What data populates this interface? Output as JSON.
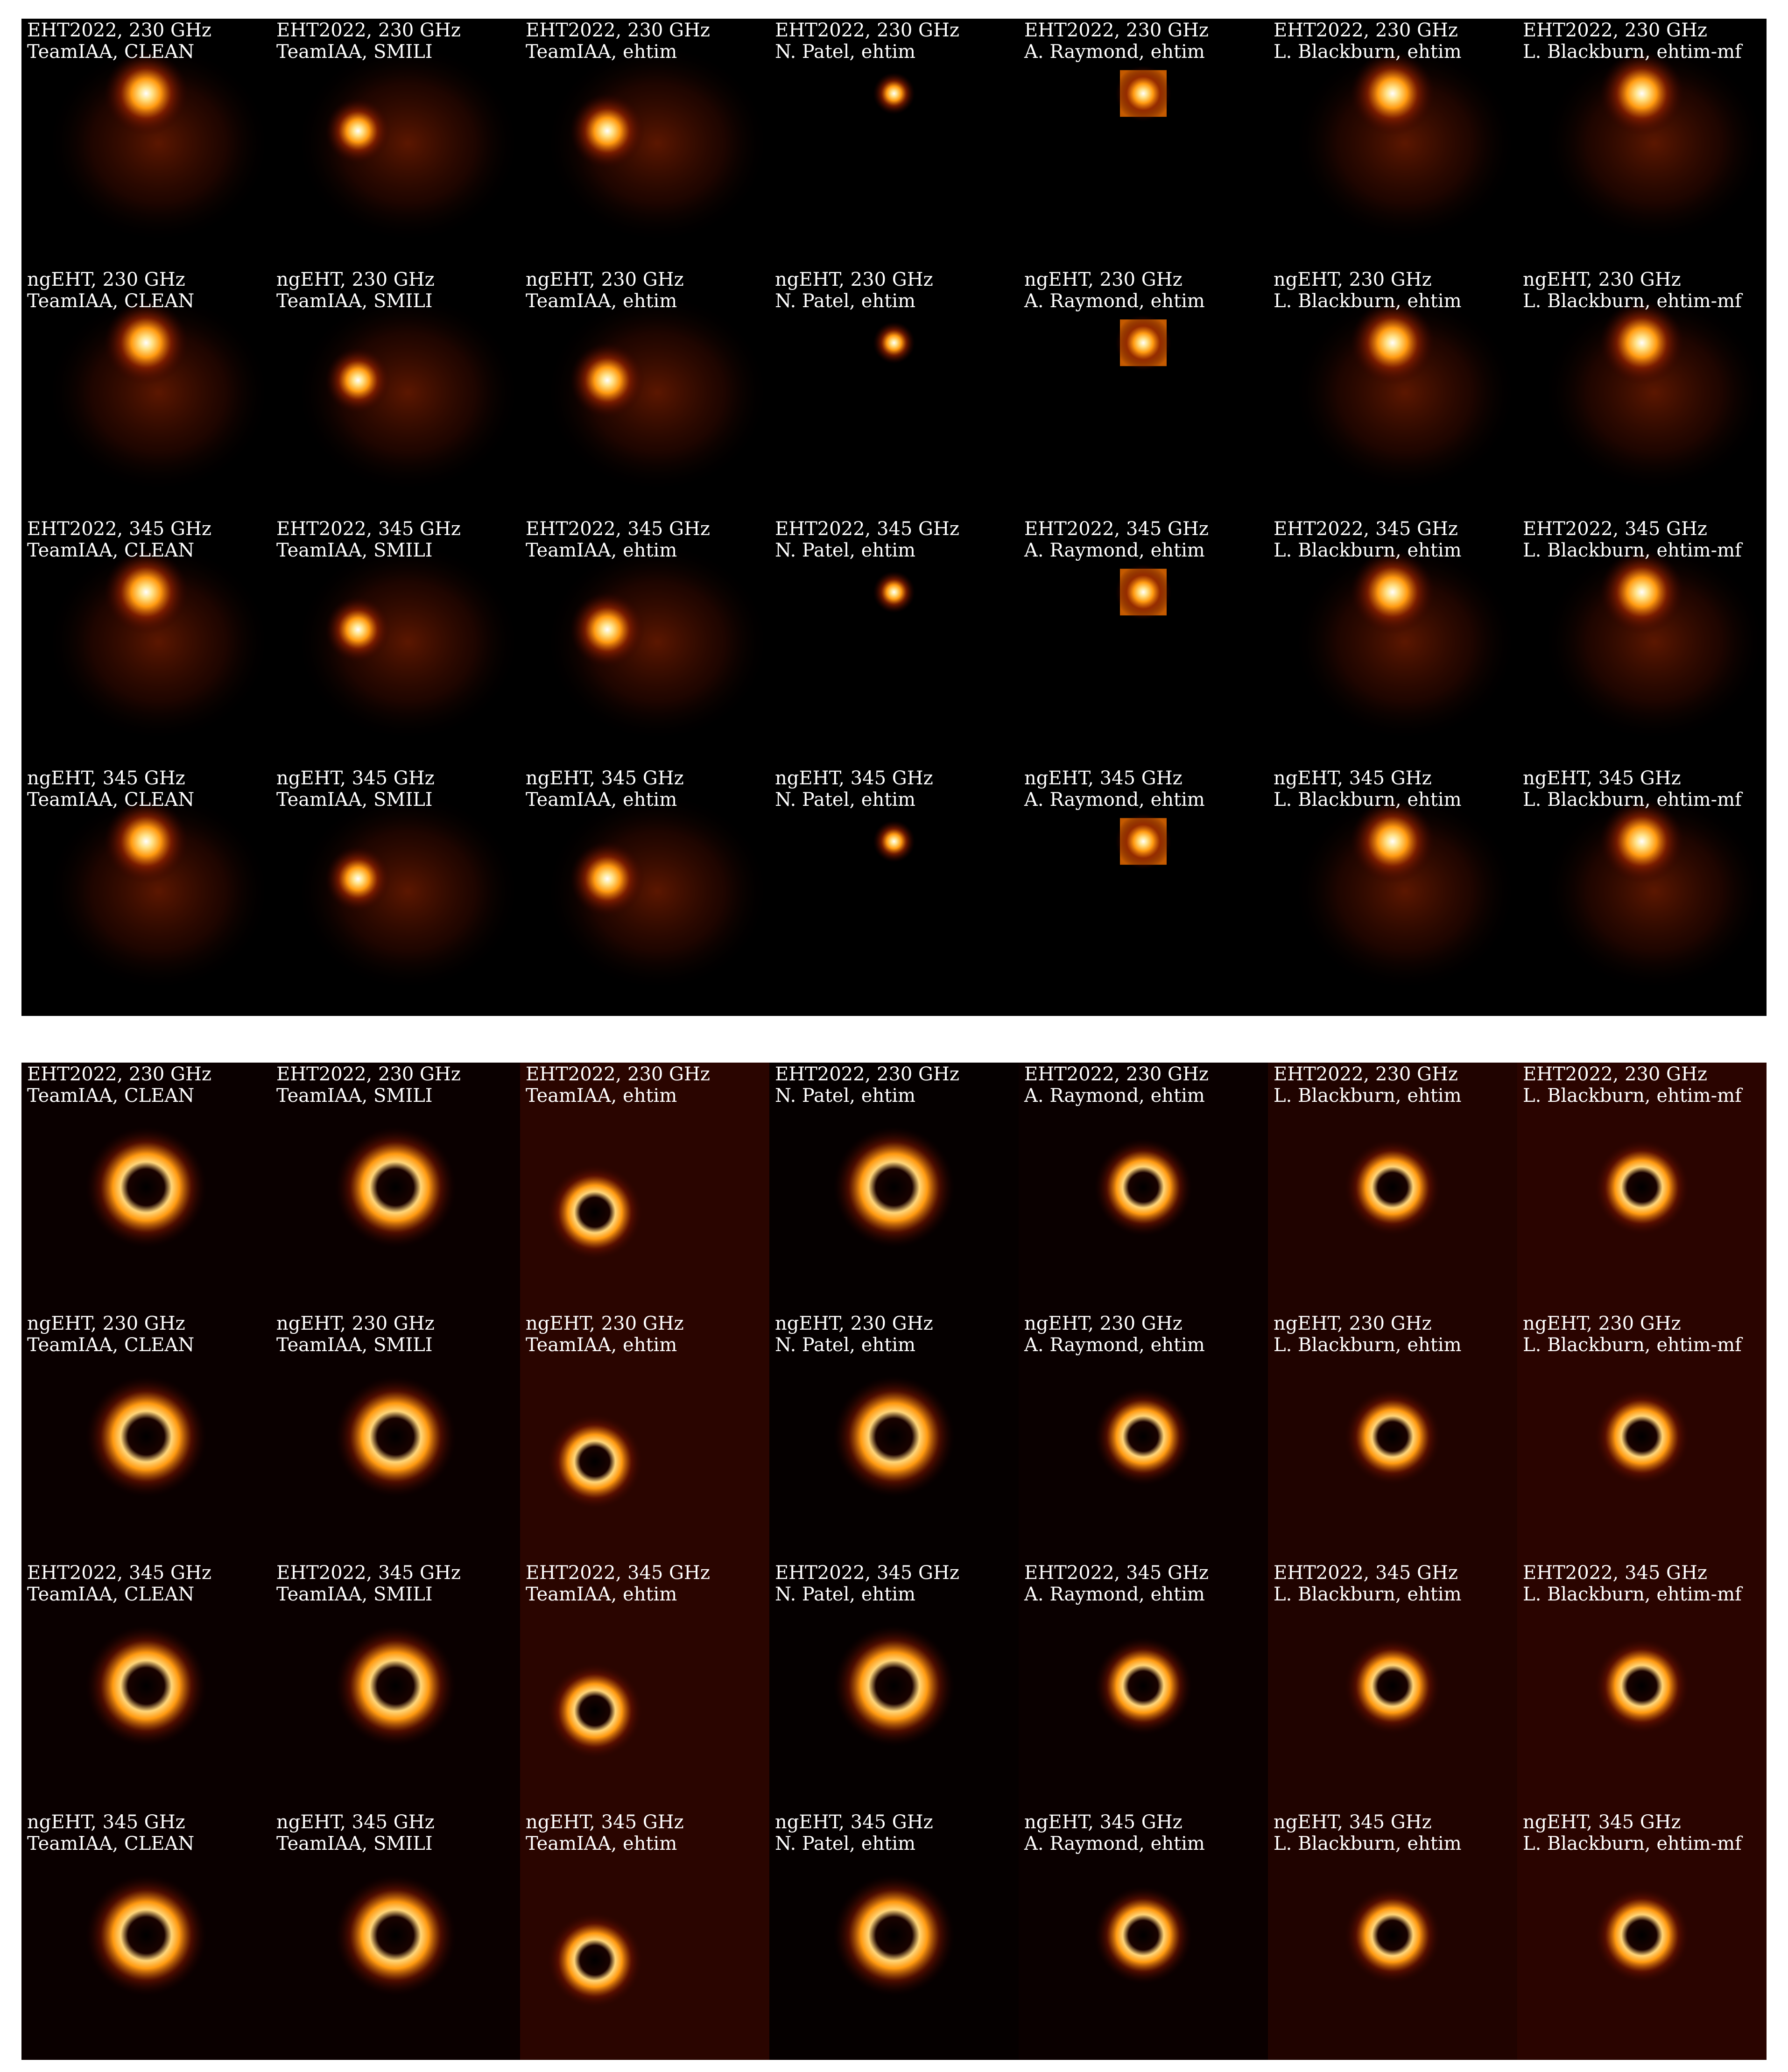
{
  "panels": [
    {
      "rows": [
        "EHT2022, 230 GHz",
        "ngEHT, 230 GHz",
        "EHT2022, 345 GHz",
        "ngEHT, 345 GHz"
      ],
      "columns": [
        "TeamIAA, CLEAN",
        "TeamIAA, SMILI",
        "TeamIAA, ehtim",
        "N. Patel, ehtim",
        "A. Raymond, ehtim",
        "L. Blackburn, ehtim",
        "L. Blackburn, ehtim-mf"
      ]
    },
    {
      "rows": [
        "EHT2022, 230 GHz",
        "ngEHT, 230 GHz",
        "EHT2022, 345 GHz",
        "ngEHT, 345 GHz"
      ],
      "columns": [
        "TeamIAA, CLEAN",
        "TeamIAA, SMILI",
        "TeamIAA, ehtim",
        "N. Patel, ehtim",
        "A. Raymond, ehtim",
        "L. Blackburn, ehtim",
        "L. Blackburn, ehtim-mf"
      ]
    }
  ]
}
